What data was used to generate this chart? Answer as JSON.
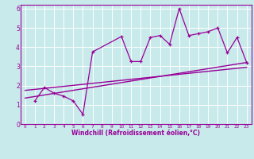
{
  "xlabel": "Windchill (Refroidissement éolien,°C)",
  "bg_color": "#c8eaea",
  "line_color": "#990099",
  "grid_color": "#ffffff",
  "border_color": "#990099",
  "xlim": [
    -0.5,
    23.5
  ],
  "ylim": [
    0,
    6.2
  ],
  "xticks": [
    0,
    1,
    2,
    3,
    4,
    5,
    6,
    7,
    8,
    9,
    10,
    11,
    12,
    13,
    14,
    15,
    16,
    17,
    18,
    19,
    20,
    21,
    22,
    23
  ],
  "yticks": [
    0,
    1,
    2,
    3,
    4,
    5,
    6
  ],
  "data_x": [
    1,
    2,
    3,
    4,
    5,
    6,
    7,
    10,
    11,
    12,
    13,
    14,
    15,
    16,
    17,
    18,
    19,
    20,
    21,
    22,
    23
  ],
  "data_y": [
    1.2,
    1.9,
    1.6,
    1.45,
    1.2,
    0.5,
    3.75,
    4.55,
    3.25,
    3.25,
    4.5,
    4.6,
    4.15,
    6.0,
    4.6,
    4.7,
    4.8,
    5.0,
    3.7,
    4.5,
    3.2
  ],
  "trend1_x": [
    0,
    23
  ],
  "trend1_y": [
    1.35,
    3.2
  ],
  "trend2_x": [
    0,
    23
  ],
  "trend2_y": [
    1.75,
    2.95
  ]
}
